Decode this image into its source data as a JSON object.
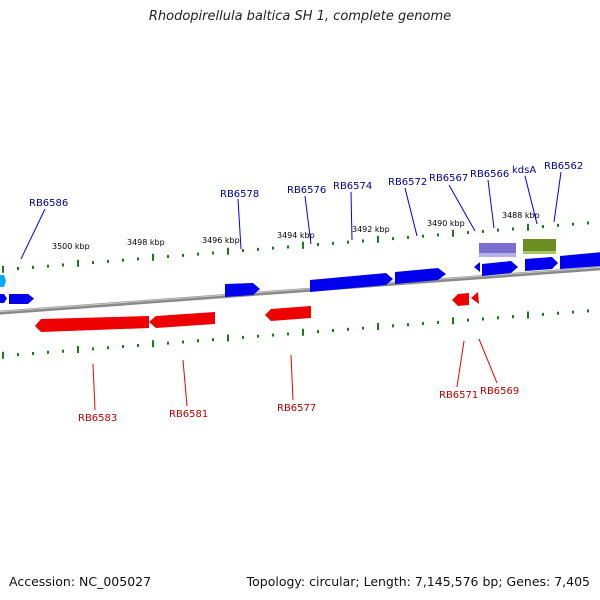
{
  "title": "Rhodopirellula baltica SH 1, complete genome",
  "footer": {
    "accession": "Accession: NC_005027",
    "summary": "Topology: circular; Length: 7,145,576 bp; Genes: 7,405"
  },
  "colors": {
    "forward": "#0000ee",
    "forward_label": "#00008b",
    "reverse": "#ee0000",
    "reverse_label": "#bb0000",
    "tick": "#1a7a1a",
    "backbone": "#8a8a8a",
    "cyan_gene": "#00aaff",
    "purple_gene": "#7a6fd0",
    "olive_gene": "#6b8e23"
  },
  "scale_labels": [
    "3500 kbp",
    "3498 kbp",
    "3496 kbp",
    "3494 kbp",
    "3492 kbp",
    "3490 kbp",
    "3488 kbp"
  ],
  "forward_gene_labels": [
    "RB6586",
    "RB6578",
    "RB6576",
    "RB6574",
    "RB6572",
    "RB6567",
    "RB6566",
    "kdsA",
    "RB6562"
  ],
  "reverse_gene_labels": [
    "RB6583",
    "RB6581",
    "RB6577",
    "RB6571",
    "RB6569"
  ]
}
